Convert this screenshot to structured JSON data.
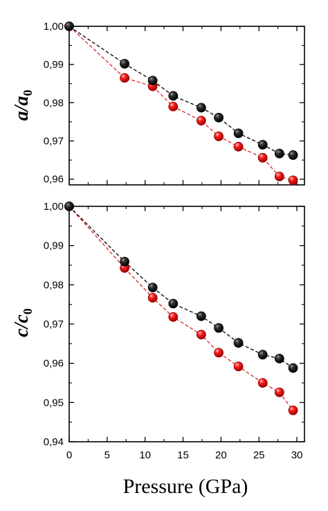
{
  "chart_data": [
    {
      "type": "scatter",
      "id": "top",
      "ylabel_main": "a/a",
      "ylabel_sub": "0",
      "xlabel": "",
      "xlim": [
        0,
        31
      ],
      "ylim": [
        0.9585,
        1.0
      ],
      "xticks": [
        0,
        5,
        10,
        15,
        20,
        25,
        30
      ],
      "yticks": [
        0.96,
        0.97,
        0.98,
        0.99,
        1.0
      ],
      "ytick_labels": [
        "0,96",
        "0,97",
        "0,98",
        "0,99",
        "1,00"
      ],
      "show_x_tick_labels": false,
      "series": [
        {
          "color": "black",
          "x": [
            0,
            7.3,
            11.0,
            13.7,
            17.4,
            19.7,
            22.3,
            25.5,
            27.7,
            29.5
          ],
          "y": [
            1.0,
            0.9902,
            0.9858,
            0.9818,
            0.9787,
            0.9761,
            0.972,
            0.969,
            0.9667,
            0.9663
          ]
        },
        {
          "color": "red",
          "x": [
            0,
            7.3,
            11.0,
            13.7,
            17.4,
            19.7,
            22.3,
            25.5,
            27.7,
            29.5
          ],
          "y": [
            1.0,
            0.9865,
            0.9843,
            0.979,
            0.9753,
            0.9712,
            0.9685,
            0.9656,
            0.9607,
            0.9597
          ]
        }
      ]
    },
    {
      "type": "scatter",
      "id": "bottom",
      "ylabel_main": "c/c",
      "ylabel_sub": "0",
      "xlabel": "Pressure (GPa)",
      "xlim": [
        0,
        31
      ],
      "ylim": [
        0.94,
        1.0
      ],
      "xticks": [
        0,
        5,
        10,
        15,
        20,
        25,
        30
      ],
      "xtick_labels": [
        "0",
        "5",
        "10",
        "15",
        "20",
        "25",
        "30"
      ],
      "yticks": [
        0.94,
        0.95,
        0.96,
        0.97,
        0.98,
        0.99,
        1.0
      ],
      "ytick_labels": [
        "0,94",
        "0,95",
        "0,96",
        "0,97",
        "0,98",
        "0,99",
        "1,00"
      ],
      "show_x_tick_labels": true,
      "series": [
        {
          "color": "black",
          "x": [
            0,
            7.3,
            11.0,
            13.7,
            17.4,
            19.7,
            22.3,
            25.5,
            27.7,
            29.5
          ],
          "y": [
            1.0,
            0.9859,
            0.9793,
            0.9752,
            0.972,
            0.969,
            0.9652,
            0.9622,
            0.9612,
            0.9588
          ]
        },
        {
          "color": "red",
          "x": [
            0,
            7.3,
            11.0,
            13.7,
            17.4,
            19.7,
            22.3,
            25.5,
            27.7,
            29.5
          ],
          "y": [
            1.0,
            0.9843,
            0.9767,
            0.9718,
            0.9673,
            0.9627,
            0.9592,
            0.955,
            0.9526,
            0.948
          ]
        }
      ]
    }
  ],
  "colors": {
    "black_marker": "#000000",
    "red_marker": "#e00000",
    "black_line": "#000000",
    "red_line": "#e02020",
    "axis": "#000000"
  }
}
